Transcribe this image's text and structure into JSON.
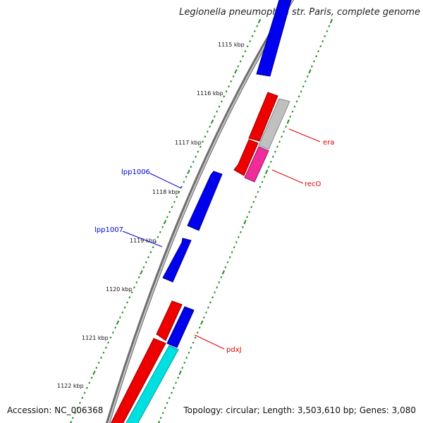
{
  "title": "Legionella pneumophila str. Paris, complete genome",
  "footer": {
    "accession": "Accession: NC_006368",
    "summary": "Topology: circular; Length: 3,503,610 bp; Genes: 3,080"
  },
  "colors": {
    "backbone": "#8a8a8a",
    "tick_dots": "#228b22",
    "forward_blue": "#0000ee",
    "red": "#ee0000",
    "gray": "#c0c0c0",
    "magenta": "#ee2d9a",
    "cyan": "#00e0e0",
    "label_blue": "#0000cc",
    "label_red": "#dd0000"
  },
  "scale_labels": [
    "1115 kbp",
    "1116 kbp",
    "1117 kbp",
    "1118 kbp",
    "1119 kbp",
    "1120 kbp",
    "1121 kbp",
    "1122 kbp"
  ],
  "genes": [
    {
      "id": "g-top-blue",
      "color": "forward_blue",
      "label": ""
    },
    {
      "id": "g-red-1",
      "color": "red",
      "label": ""
    },
    {
      "id": "g-red-2",
      "color": "red",
      "label": ""
    },
    {
      "id": "g-gray",
      "color": "gray",
      "label": "era"
    },
    {
      "id": "g-magenta",
      "color": "magenta",
      "label": "recO"
    },
    {
      "id": "g-blue-lpp1006",
      "color": "forward_blue",
      "label": "lpp1006"
    },
    {
      "id": "g-blue-lpp1007",
      "color": "forward_blue",
      "label": "lpp1007"
    },
    {
      "id": "g-red-3",
      "color": "red",
      "label": ""
    },
    {
      "id": "g-blue-pdxj",
      "color": "forward_blue",
      "label": "pdxJ"
    },
    {
      "id": "g-red-4",
      "color": "red",
      "label": ""
    },
    {
      "id": "g-cyan",
      "color": "cyan",
      "label": ""
    }
  ]
}
